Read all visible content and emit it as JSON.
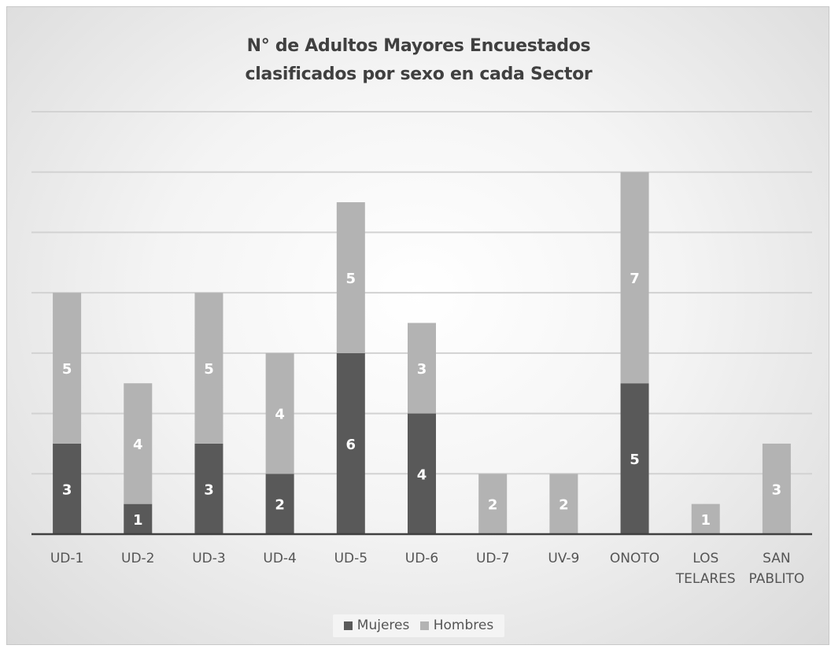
{
  "chart_data": {
    "type": "bar",
    "stacked": true,
    "title_lines": [
      "N° de Adultos Mayores Encuestados",
      "clasificados por sexo en cada Sector"
    ],
    "categories": [
      [
        "UD-1"
      ],
      [
        "UD-2"
      ],
      [
        "UD-3"
      ],
      [
        "UD-4"
      ],
      [
        "UD-5"
      ],
      [
        "UD-6"
      ],
      [
        "UD-7"
      ],
      [
        "UV-9"
      ],
      [
        "ONOTO"
      ],
      [
        "LOS",
        "TELARES"
      ],
      [
        "SAN",
        "PABLITO"
      ]
    ],
    "series": [
      {
        "name": "Mujeres",
        "color": "#595959",
        "values": [
          3,
          1,
          3,
          2,
          6,
          4,
          0,
          0,
          5,
          0,
          0
        ]
      },
      {
        "name": "Hombres",
        "color": "#b3b3b3",
        "values": [
          5,
          4,
          5,
          4,
          5,
          3,
          2,
          2,
          7,
          1,
          3
        ]
      }
    ],
    "ylim": [
      0,
      14
    ],
    "y_gridline_step": 2,
    "grid": true,
    "y_axis_labels_shown": false,
    "legend_position": "bottom"
  }
}
